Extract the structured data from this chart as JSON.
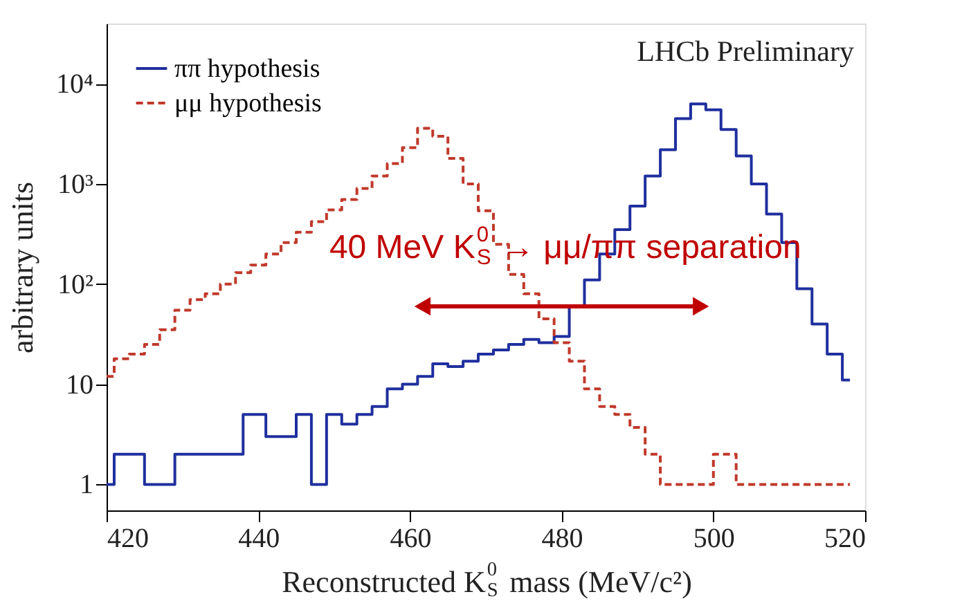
{
  "chart_data": {
    "type": "step",
    "x": [
      420,
      422,
      424,
      426,
      428,
      430,
      432,
      434,
      436,
      438,
      440,
      442,
      444,
      446,
      448,
      450,
      452,
      454,
      456,
      458,
      460,
      462,
      464,
      466,
      468,
      470,
      472,
      474,
      476,
      478,
      480,
      482,
      484,
      486,
      488,
      490,
      492,
      494,
      496,
      498,
      500,
      502,
      504,
      506,
      508,
      510,
      512,
      514,
      516,
      518
    ],
    "series": [
      {
        "name": "ππ hypothesis",
        "color": "#1f2f9e",
        "line_style": "solid",
        "values": [
          1,
          2,
          null,
          null,
          1,
          2,
          2,
          null,
          2,
          null,
          5,
          3,
          3,
          5,
          1,
          5,
          4,
          5,
          6,
          9,
          10,
          12,
          16,
          15,
          17,
          20,
          22,
          25,
          28,
          26,
          30,
          60,
          110,
          200,
          350,
          600,
          1200,
          2200,
          4500,
          6300,
          5500,
          3500,
          1900,
          1000,
          500,
          260,
          90,
          40,
          20,
          11
        ]
      },
      {
        "name": "μμ hypothesis",
        "color": "#c0392b",
        "line_style": "dashed",
        "values": [
          12,
          18,
          20,
          25,
          35,
          55,
          70,
          80,
          100,
          130,
          155,
          200,
          260,
          330,
          420,
          550,
          700,
          900,
          1200,
          1600,
          2300,
          3600,
          3000,
          1800,
          1000,
          540,
          250,
          125,
          80,
          45,
          26,
          17,
          9,
          6,
          5,
          3.7,
          2,
          1,
          1,
          1,
          null,
          2,
          1,
          1,
          1,
          null,
          null,
          1,
          1,
          1
        ]
      }
    ],
    "xlabel": "Reconstructed K$_{S}$$^{0}$ mass (MeV/c²)",
    "ylabel": "arbitrary units",
    "log": "y",
    "xlim": [
      420,
      520
    ],
    "xticks": [
      420,
      440,
      460,
      480,
      500,
      520
    ],
    "ylim": [
      0.55,
      40000
    ],
    "yticks": [
      1,
      10,
      {
        "value": 100,
        "label": "10²"
      },
      {
        "value": 1000,
        "label": "10³"
      },
      {
        "value": 10000,
        "label": "10⁴"
      }
    ],
    "grid": false,
    "legend": "top left",
    "annotations": [
      "LHCb Preliminary",
      {
        "text": "40 MeV K$_{S}$$^{0}$ → μμ/ππ separation",
        "x": 480,
        "y": 60
      }
    ]
  }
}
